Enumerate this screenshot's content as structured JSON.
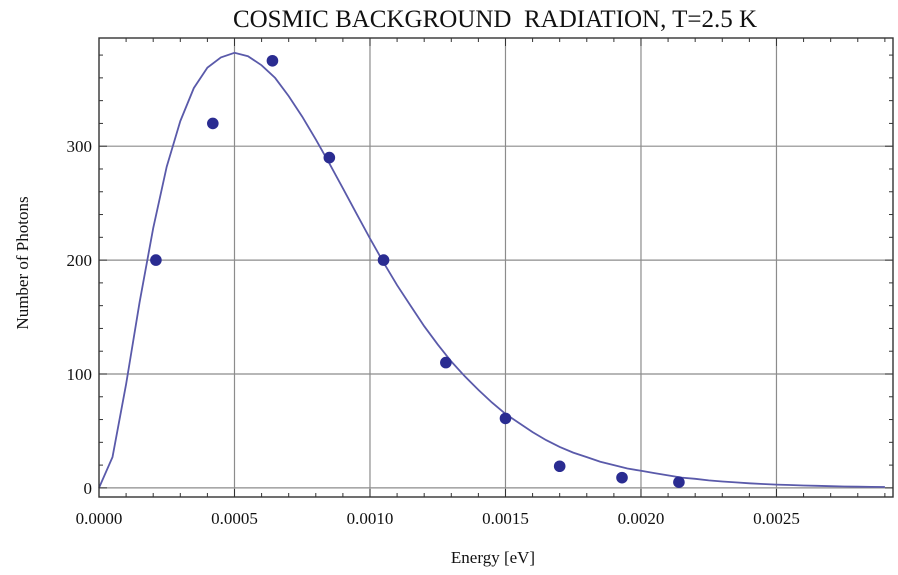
{
  "chart_data": {
    "type": "scatter",
    "title": "COSMIC BACKGROUND  RADIATION, T=2.5 K",
    "xlabel": "Energy [eV]",
    "ylabel": "Number of Photons",
    "xlim": [
      0.0,
      0.00293
    ],
    "ylim": [
      -8,
      395
    ],
    "grid": true,
    "xticks": [
      {
        "value": 0.0,
        "label": "0.0000"
      },
      {
        "value": 0.0005,
        "label": "0.0005"
      },
      {
        "value": 0.001,
        "label": "0.0010"
      },
      {
        "value": 0.0015,
        "label": "0.0015"
      },
      {
        "value": 0.002,
        "label": "0.0020"
      },
      {
        "value": 0.0025,
        "label": "0.0025"
      }
    ],
    "yticks": [
      {
        "value": 0,
        "label": "0"
      },
      {
        "value": 100,
        "label": "100"
      },
      {
        "value": 200,
        "label": "200"
      },
      {
        "value": 300,
        "label": "300"
      }
    ],
    "points": {
      "x": [
        0.00021,
        0.00042,
        0.00064,
        0.00085,
        0.00105,
        0.00128,
        0.0015,
        0.0017,
        0.00193,
        0.00214
      ],
      "y": [
        200,
        320,
        375,
        290,
        200,
        110,
        61,
        19,
        9,
        5
      ]
    },
    "curve": {
      "x": [
        0.0,
        5e-05,
        0.0001,
        0.00015,
        0.0002,
        0.00025,
        0.0003,
        0.00035,
        0.0004,
        0.00045,
        0.0005,
        0.00055,
        0.0006,
        0.00065,
        0.0007,
        0.00075,
        0.0008,
        0.00085,
        0.0009,
        0.00095,
        0.001,
        0.00105,
        0.0011,
        0.00115,
        0.0012,
        0.00125,
        0.0013,
        0.00135,
        0.0014,
        0.00145,
        0.0015,
        0.00155,
        0.0016,
        0.00165,
        0.0017,
        0.00175,
        0.0018,
        0.00185,
        0.0019,
        0.00195,
        0.002,
        0.00205,
        0.0021,
        0.00215,
        0.0022,
        0.00225,
        0.0023,
        0.00235,
        0.0024,
        0.00245,
        0.0025,
        0.00255,
        0.0026,
        0.00265,
        0.0027,
        0.00275,
        0.0028,
        0.00285,
        0.0029
      ],
      "y": [
        0,
        27,
        91,
        163,
        228,
        282,
        322,
        351,
        369,
        378,
        382,
        379,
        371,
        360,
        344,
        326,
        306,
        285,
        263,
        241,
        219,
        198,
        178,
        160,
        142,
        126,
        111,
        98,
        86,
        75,
        65,
        57,
        49,
        42,
        36,
        31,
        27,
        23,
        20,
        17,
        15,
        13,
        11,
        9,
        8,
        6.6,
        5.6,
        4.8,
        4.0,
        3.4,
        2.9,
        2.5,
        2.1,
        1.8,
        1.5,
        1.2,
        1.0,
        0.9,
        0.75
      ]
    },
    "colors": {
      "points": "#2a2c91",
      "curve": "#5a5aaa",
      "grid": "#8c8c8c",
      "frame": "#333333"
    }
  }
}
